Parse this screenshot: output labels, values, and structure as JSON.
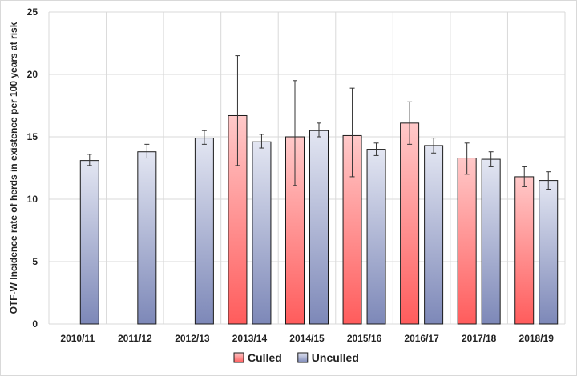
{
  "chart_data": {
    "type": "bar",
    "title": "",
    "xlabel": "",
    "ylabel": "OTF-W Incidence rate of herds in existence per 100 years at risk",
    "ylim": [
      0,
      25
    ],
    "yticks": [
      0,
      5,
      10,
      15,
      20,
      25
    ],
    "grid": true,
    "legend_position": "bottom-center",
    "categories": [
      "2010/11",
      "2011/12",
      "2012/13",
      "2013/14",
      "2014/15",
      "2015/16",
      "2016/17",
      "2017/18",
      "2018/19"
    ],
    "series": [
      {
        "name": "Culled",
        "color_top": "#ffc9c9",
        "color_bottom": "#ff5c5c",
        "values": [
          null,
          null,
          null,
          16.7,
          15.0,
          15.1,
          16.1,
          13.3,
          11.8
        ],
        "error_low": [
          null,
          null,
          null,
          12.7,
          11.1,
          11.8,
          14.4,
          12.0,
          11.0
        ],
        "error_high": [
          null,
          null,
          null,
          21.5,
          19.5,
          18.9,
          17.8,
          14.5,
          12.6
        ]
      },
      {
        "name": "Unculled",
        "color_top": "#e3e6f2",
        "color_bottom": "#7d88b8",
        "values": [
          13.1,
          13.8,
          14.9,
          14.6,
          15.5,
          14.0,
          14.3,
          13.2,
          11.5
        ],
        "error_low": [
          12.7,
          13.3,
          14.4,
          14.1,
          15.0,
          13.5,
          13.7,
          12.6,
          10.8
        ],
        "error_high": [
          13.6,
          14.4,
          15.5,
          15.2,
          16.1,
          14.5,
          14.9,
          13.8,
          12.2
        ]
      }
    ]
  }
}
